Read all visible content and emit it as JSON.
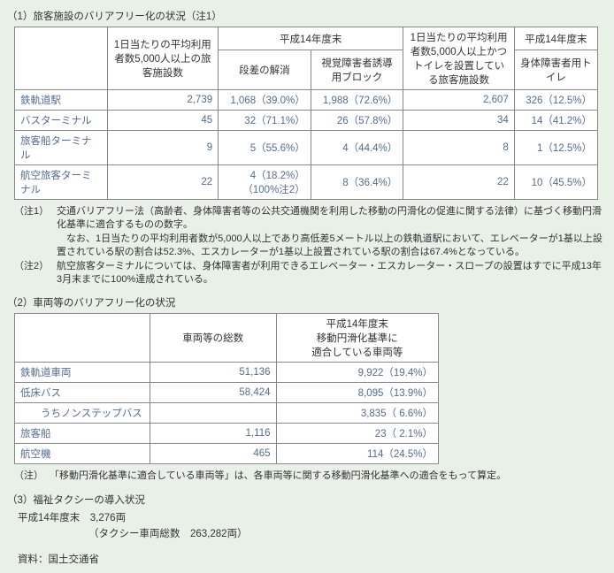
{
  "s1": {
    "title": "（1）旅客施設のバリアフリー化の状況（注1）",
    "h_a": "1日当たりの平均利用者数5,000人以上の旅客施設数",
    "h_b": "平成14年度末",
    "h_b1": "段差の解消",
    "h_b2": "視覚障害者誘導用ブロック",
    "h_c": "1日当たりの平均利用者数5,000人以上かつトイレを設置している旅客施設数",
    "h_d": "平成14年度末",
    "h_d1": "身体障害者用トイレ",
    "rows": [
      {
        "lbl": "鉄軌道駅",
        "a": "2,739",
        "b1": "1,068（39.0%）",
        "b2": "1,988（72.6%）",
        "c": "2,607",
        "d": "326（12.5%）"
      },
      {
        "lbl": "バスターミナル",
        "a": "45",
        "b1": "32（71.1%）",
        "b2": "26（57.8%）",
        "c": "34",
        "d": "14（41.2%）"
      },
      {
        "lbl": "旅客船ターミナル",
        "a": "9",
        "b1": "5（55.6%）",
        "b2": "4（44.4%）",
        "c": "8",
        "d": "1（12.5%）"
      },
      {
        "lbl": "航空旅客ターミナル",
        "a": "22",
        "b1": "4（18.2%）\n（100%注2）",
        "b2": "8（36.4%）",
        "c": "22",
        "d": "10（45.5%）"
      }
    ],
    "n1tag": "（注1）",
    "n1a": "交通バリアフリー法（高齢者、身体障害者等の公共交通機関を利用した移動の円滑化の促進に関する法律）に基づく移動円滑化基準に適合するものの数字。",
    "n1b": "なお、1日当たりの平均利用者数が5,000人以上であり高低差5メートル以上の鉄軌道駅において、エレベーターが1基以上設置されている駅の割合は52.3%、エスカレーターが1基以上設置されている駅の割合は67.4%となっている。",
    "n2tag": "（注2）",
    "n2": "航空旅客ターミナルについては、身体障害者が利用できるエレベーター・エスカレーター・スロープの設置はすでに平成13年3月末までに100%達成されている。"
  },
  "s2": {
    "title": "（2）車両等のバリアフリー化の状況",
    "h_a": "車両等の総数",
    "h_b": "平成14年度末\n移動円滑化基準に\n適合している車両等",
    "rows": [
      {
        "lbl": "鉄軌道車両",
        "a": "51,136",
        "b": "9,922（19.4%）"
      },
      {
        "lbl": "低床バス",
        "a": "58,424",
        "b": "8,095（13.9%）"
      },
      {
        "lbl": "　　うちノンステップバス",
        "a": "",
        "b": "3,835（ 6.6%）"
      },
      {
        "lbl": "旅客船",
        "a": "1,116",
        "b": "23（ 2.1%）"
      },
      {
        "lbl": "航空機",
        "a": "465",
        "b": "114（24.5%）"
      }
    ],
    "note_tag": "（注）",
    "note": "「移動円滑化基準に適合している車両等」は、各車両等に関する移動円滑化基準への適合をもって算定。"
  },
  "s3": {
    "title": "（3）福祉タクシーの導入状況",
    "l1": "平成14年度末　3,276両",
    "l2": "（タクシー車両総数　263,282両）"
  },
  "src": "資料：国土交通省"
}
